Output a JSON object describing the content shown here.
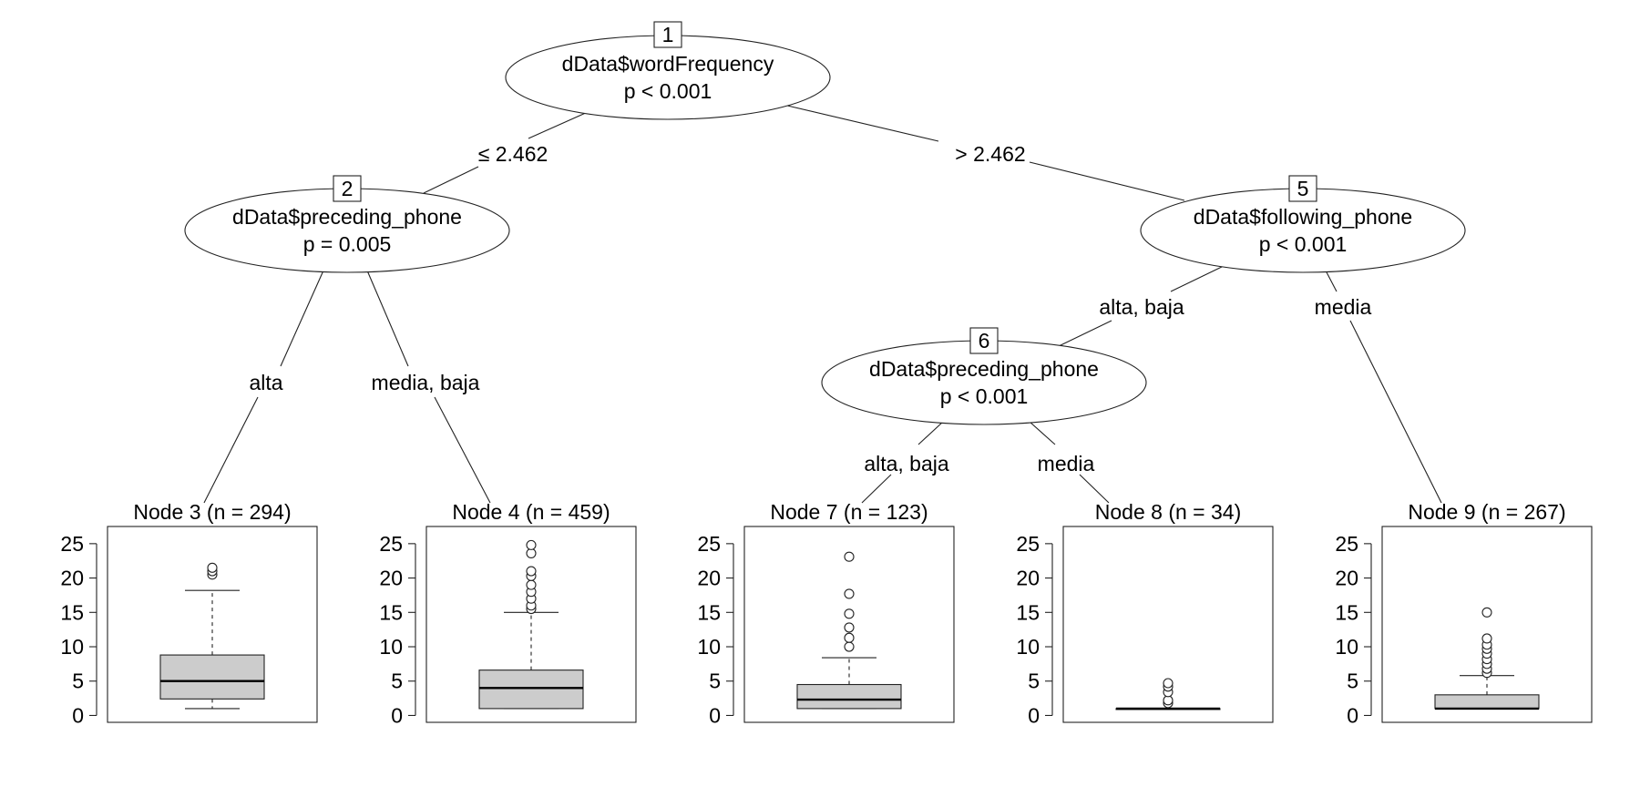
{
  "inner_nodes": [
    {
      "id": "1",
      "variable": "dData$wordFrequency",
      "pvalue": "p < 0.001"
    },
    {
      "id": "2",
      "variable": "dData$preceding_phone",
      "pvalue": "p = 0.005"
    },
    {
      "id": "5",
      "variable": "dData$following_phone",
      "pvalue": "p < 0.001"
    },
    {
      "id": "6",
      "variable": "dData$preceding_phone",
      "pvalue": "p < 0.001"
    }
  ],
  "edges": [
    {
      "from": "1",
      "to": "2",
      "label": "≤ 2.462"
    },
    {
      "from": "1",
      "to": "5",
      "label": "> 2.462"
    },
    {
      "from": "2",
      "to": "3",
      "label": "alta"
    },
    {
      "from": "2",
      "to": "4",
      "label": "media, baja"
    },
    {
      "from": "5",
      "to": "6",
      "label": "alta, baja"
    },
    {
      "from": "5",
      "to": "9",
      "label": "media"
    },
    {
      "from": "6",
      "to": "7",
      "label": "alta, baja"
    },
    {
      "from": "6",
      "to": "8",
      "label": "media"
    }
  ],
  "chart_data": {
    "type": "boxplot",
    "y_ticks": [
      "0",
      "5",
      "10",
      "15",
      "20",
      "25"
    ],
    "ylim": [
      -1,
      27.5
    ],
    "terminal_nodes": [
      {
        "title": "Node 3 (n = 294)",
        "min": 1,
        "q1": 2.4,
        "median": 5,
        "q3": 8.8,
        "max": 18.2,
        "outliers": [
          20.5,
          21,
          21.5
        ]
      },
      {
        "title": "Node 4 (n = 459)",
        "min": 1,
        "q1": 1,
        "median": 4,
        "q3": 6.6,
        "max": 15,
        "outliers": [
          15.5,
          16,
          17,
          18,
          19,
          20.3,
          21,
          23.6,
          24.8
        ]
      },
      {
        "title": "Node 7 (n = 123)",
        "min": 1,
        "q1": 1,
        "median": 2.3,
        "q3": 4.5,
        "max": 8.4,
        "outliers": [
          10,
          11.3,
          12.8,
          14.8,
          17.7,
          23.1
        ]
      },
      {
        "title": "Node 8 (n = 34)",
        "min": 1,
        "q1": 1,
        "median": 1,
        "q3": 1,
        "max": 1,
        "outliers": [
          1.8,
          2.2,
          3.4,
          4.2,
          4.7
        ]
      },
      {
        "title": "Node 9 (n = 267)",
        "min": 1,
        "q1": 1,
        "median": 1,
        "q3": 3,
        "max": 5.8,
        "outliers": [
          6.2,
          6.8,
          7.5,
          8.2,
          9,
          9.7,
          10.3,
          11.2,
          15
        ]
      }
    ]
  }
}
